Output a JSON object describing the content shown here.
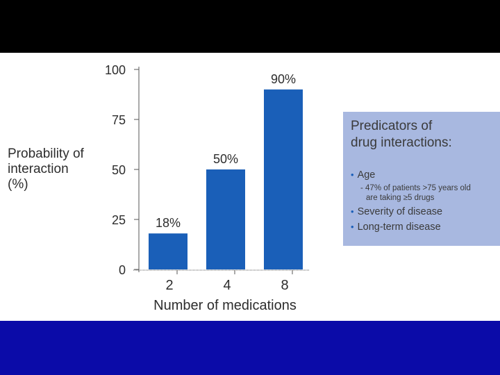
{
  "colors": {
    "top_band": "#000000",
    "bottom_band": "#0b0ba8",
    "bar": "#1a5fb8",
    "box": "#a8b8e0",
    "text": "#2d2d2d"
  },
  "chart_data": {
    "type": "bar",
    "title": "",
    "categories": [
      "2",
      "4",
      "8"
    ],
    "values": [
      18,
      50,
      90
    ],
    "data_labels": [
      "18%",
      "50%",
      "90%"
    ],
    "xlabel": "Number of medications",
    "ylabel": "Probability of\ninteraction\n(%)",
    "ylim": [
      0,
      100
    ],
    "yticks": [
      0,
      25,
      50,
      75,
      100
    ],
    "grid": false
  },
  "info_box": {
    "title": "Predicators of\ndrug interactions:",
    "items": [
      {
        "label": "Age",
        "sub_line1": "- 47% of patients >75 years old",
        "sub_line2": "are taking ≥5 drugs"
      },
      {
        "label": "Severity of disease"
      },
      {
        "label": "Long-term disease"
      }
    ]
  }
}
